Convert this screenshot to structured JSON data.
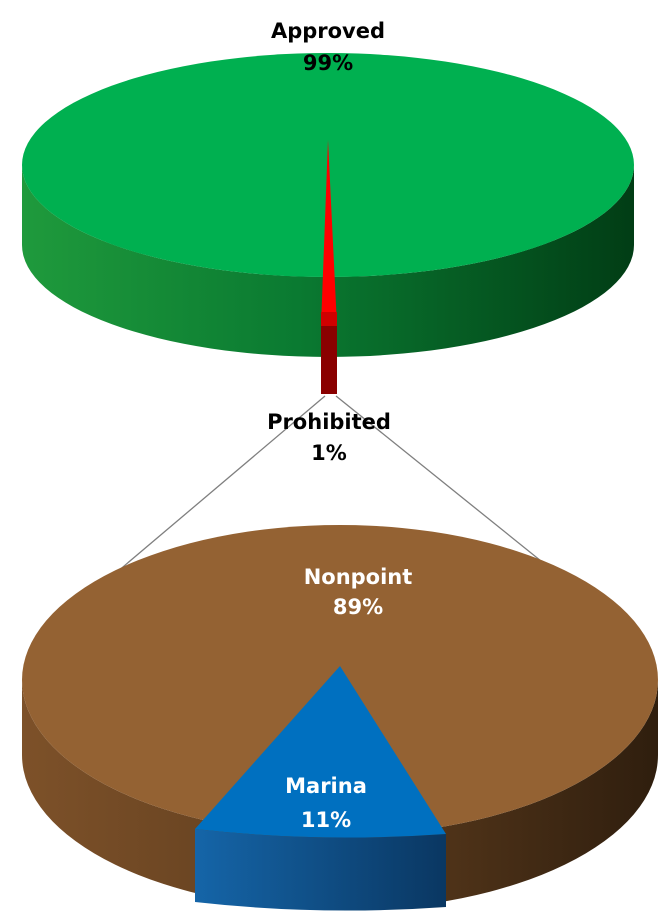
{
  "chart_data": [
    {
      "type": "pie",
      "categories": [
        "Approved",
        "Prohibited"
      ],
      "values": [
        99,
        1
      ],
      "value_labels": [
        "99%",
        "1%"
      ],
      "colors": [
        "#00b050",
        "#ff0000"
      ]
    },
    {
      "type": "pie",
      "categories": [
        "Nonpoint",
        "Marina"
      ],
      "values": [
        89,
        11
      ],
      "value_labels": [
        "89%",
        "11%"
      ],
      "colors": [
        "#946233",
        "#0070c0"
      ]
    }
  ],
  "labels": {
    "approved": {
      "name": "Approved",
      "pct": "99%"
    },
    "prohibited": {
      "name": "Prohibited",
      "pct": "1%"
    },
    "nonpoint": {
      "name": "Nonpoint",
      "pct": "89%"
    },
    "marina": {
      "name": "Marina",
      "pct": "11%"
    }
  }
}
